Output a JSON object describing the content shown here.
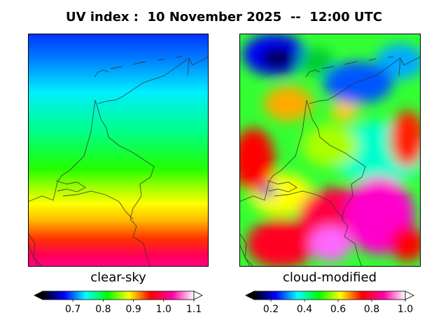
{
  "title": "UV index :  10 November 2025  --  12:00 UTC",
  "panels": [
    {
      "label": "clear-sky",
      "colorbar": {
        "min": 0.6,
        "max": 1.1,
        "extend": "both",
        "tick_values": [
          0.7,
          0.8,
          0.9,
          1.0,
          1.1
        ],
        "tick_labels": [
          "0.7",
          "0.8",
          "0.9",
          "1.0",
          "1.1"
        ]
      }
    },
    {
      "label": "cloud-modified",
      "colorbar": {
        "min": 0.1,
        "max": 1.0,
        "extend": "both",
        "tick_values": [
          0.2,
          0.4,
          0.6,
          0.8,
          1.0
        ],
        "tick_labels": [
          "0.2",
          "0.4",
          "0.6",
          "0.8",
          "1.0"
        ]
      }
    }
  ],
  "colormap": [
    "#000000",
    "#0000ff",
    "#00ffff",
    "#00ff00",
    "#ffff00",
    "#ff0000",
    "#ff00aa",
    "#ffffff"
  ],
  "colors": {
    "coastline": "#333333",
    "frame": "#000000"
  }
}
